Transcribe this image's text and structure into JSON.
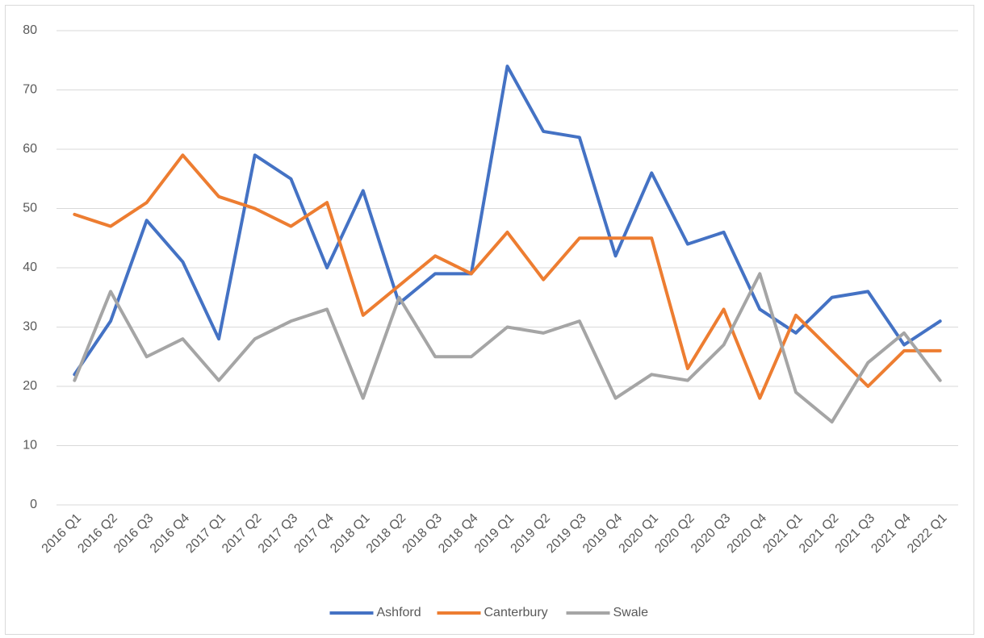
{
  "chart_data": {
    "type": "line",
    "categories": [
      "2016 Q1",
      "2016 Q2",
      "2016 Q3",
      "2016 Q4",
      "2017 Q1",
      "2017 Q2",
      "2017 Q3",
      "2017 Q4",
      "2018 Q1",
      "2018 Q2",
      "2018 Q3",
      "2018 Q4",
      "2019 Q1",
      "2019 Q2",
      "2019 Q3",
      "2019 Q4",
      "2020 Q1",
      "2020 Q2",
      "2020 Q3",
      "2020 Q4",
      "2021 Q1",
      "2021 Q2",
      "2021 Q3",
      "2021 Q4",
      "2022 Q1"
    ],
    "series": [
      {
        "name": "Ashford",
        "color": "#4472c4",
        "values": [
          22,
          31,
          48,
          41,
          28,
          59,
          55,
          40,
          53,
          34,
          39,
          39,
          74,
          63,
          62,
          42,
          56,
          44,
          46,
          33,
          29,
          35,
          36,
          27,
          31
        ]
      },
      {
        "name": "Canterbury",
        "color": "#ed7d31",
        "values": [
          49,
          47,
          51,
          59,
          52,
          50,
          47,
          51,
          32,
          37,
          42,
          39,
          46,
          38,
          45,
          45,
          45,
          23,
          33,
          18,
          32,
          26,
          20,
          26,
          26
        ]
      },
      {
        "name": "Swale",
        "color": "#a5a5a5",
        "values": [
          21,
          36,
          25,
          28,
          21,
          28,
          31,
          33,
          18,
          35,
          25,
          25,
          30,
          29,
          31,
          18,
          22,
          21,
          27,
          39,
          19,
          14,
          24,
          29,
          21
        ]
      }
    ],
    "ylim": [
      0,
      80
    ],
    "yticks": [
      0,
      10,
      20,
      30,
      40,
      50,
      60,
      70,
      80
    ],
    "grid": true,
    "legend": "bottom"
  }
}
